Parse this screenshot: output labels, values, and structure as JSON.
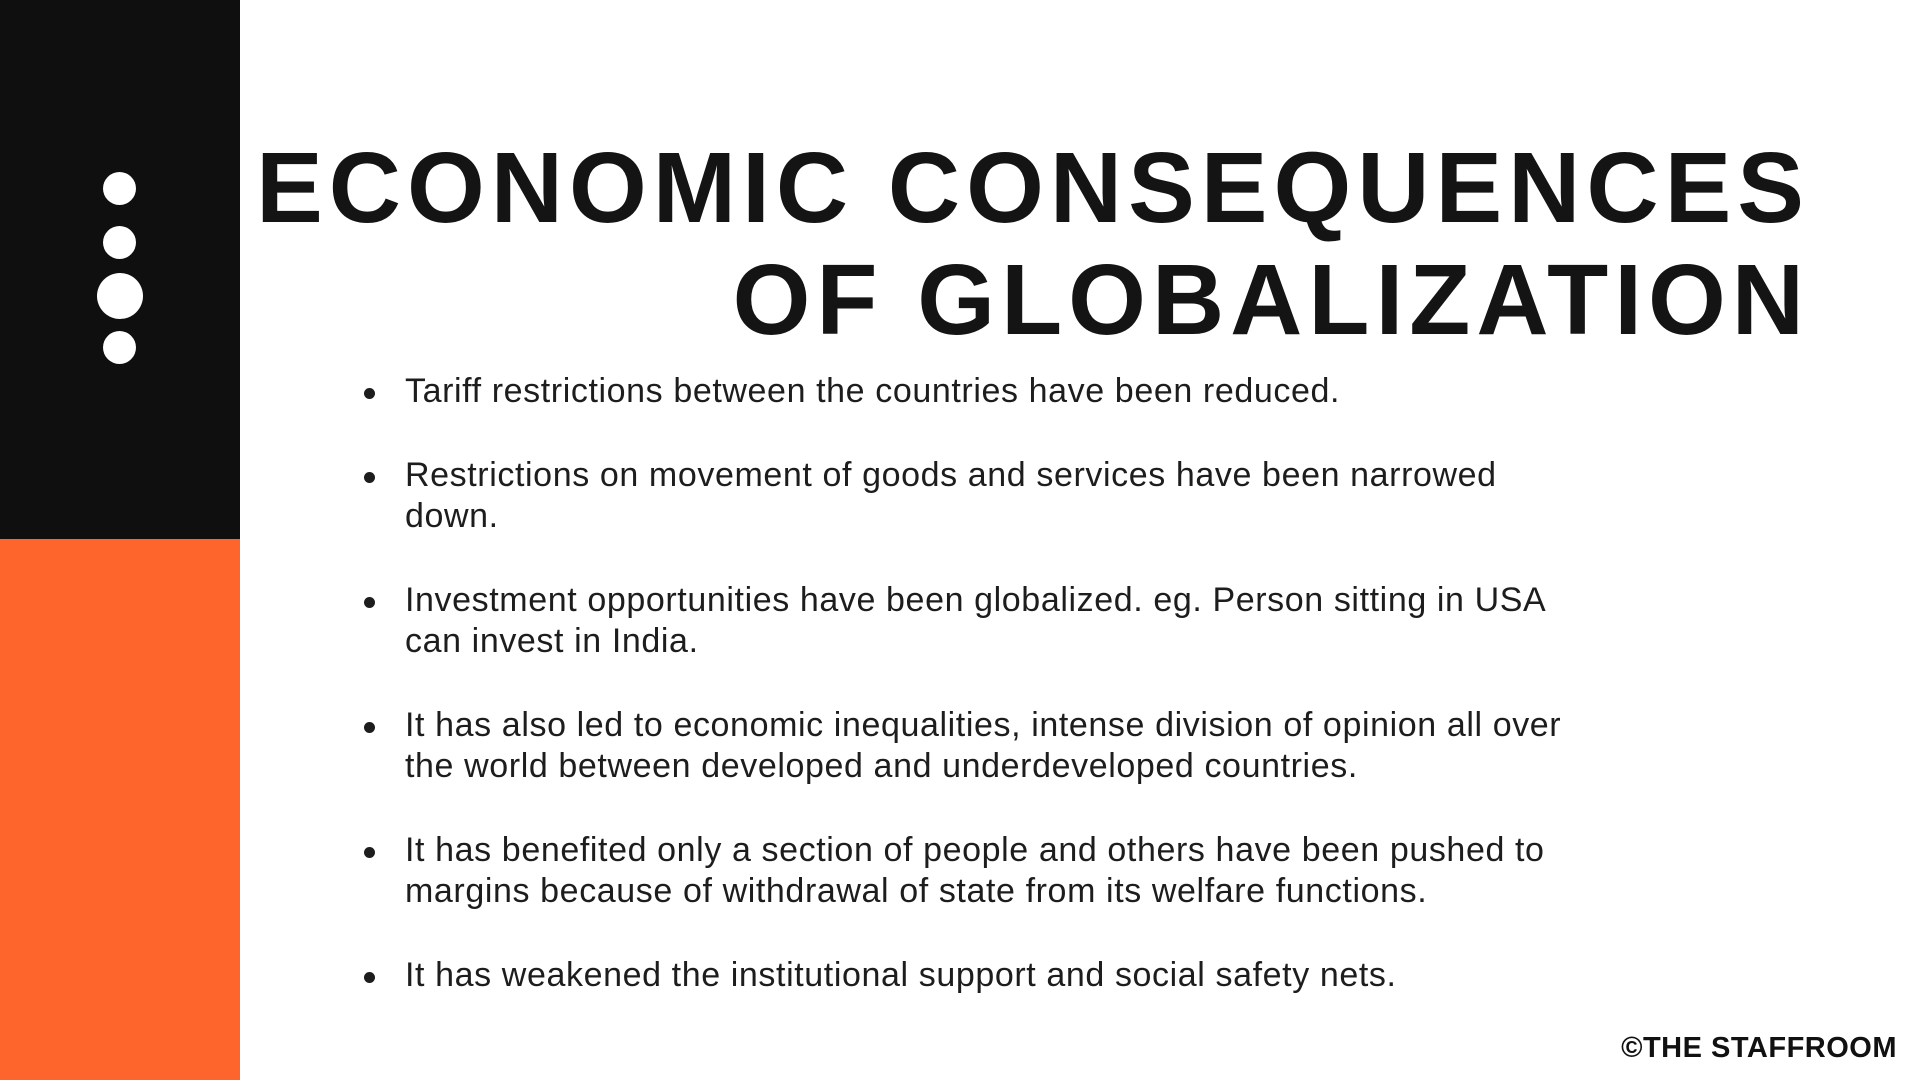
{
  "colors": {
    "sidebar-black": "#0f0f0f",
    "accent-orange": "#fd652d",
    "title-text": "#141414",
    "body-text": "#1d1d1d"
  },
  "title": "ECONOMIC CONSEQUENCES\nOF GLOBALIZATION",
  "bullets": [
    "Tariff restrictions between the countries have been reduced.",
    "Restrictions on movement of goods and services have been narrowed\ndown.",
    "Investment opportunities have been globalized. eg. Person sitting in USA\ncan invest in India.",
    "It has also led to economic inequalities, intense division of opinion all over\nthe world between developed and underdeveloped countries.",
    "It has benefited only a section of people and others have been pushed to\nmargins because of withdrawal of state from its welfare functions.",
    "It has weakened the institutional support and social safety nets."
  ],
  "footer": "©THE STAFFROOM"
}
